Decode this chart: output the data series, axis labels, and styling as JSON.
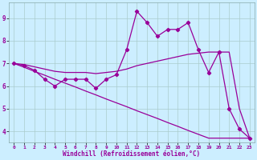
{
  "xlabel": "Windchill (Refroidissement éolien,°C)",
  "background_color": "#cceeff",
  "line_color": "#990099",
  "grid_color": "#aacccc",
  "xlim": [
    -0.5,
    23.5
  ],
  "ylim": [
    3.5,
    9.7
  ],
  "yticks": [
    4,
    5,
    6,
    7,
    8,
    9
  ],
  "xticks": [
    0,
    1,
    2,
    3,
    4,
    5,
    6,
    7,
    8,
    9,
    10,
    11,
    12,
    13,
    14,
    15,
    16,
    17,
    18,
    19,
    20,
    21,
    22,
    23
  ],
  "line1_x": [
    0,
    1,
    2,
    3,
    4,
    5,
    6,
    7,
    8,
    9,
    10,
    11,
    12,
    13,
    14,
    15,
    16,
    17,
    18,
    19,
    20,
    21,
    22,
    23
  ],
  "line1_y": [
    7.0,
    6.9,
    6.7,
    6.3,
    6.0,
    6.3,
    6.3,
    6.3,
    5.9,
    6.3,
    6.5,
    7.6,
    9.3,
    8.8,
    8.2,
    8.5,
    8.5,
    8.8,
    7.6,
    6.6,
    7.5,
    5.0,
    4.1,
    3.7
  ],
  "line2_x": [
    0,
    1,
    2,
    3,
    4,
    5,
    6,
    7,
    8,
    9,
    10,
    11,
    12,
    13,
    14,
    15,
    16,
    17,
    18,
    19,
    20,
    21,
    22,
    23
  ],
  "line2_y": [
    7.0,
    6.95,
    6.85,
    6.75,
    6.65,
    6.6,
    6.6,
    6.6,
    6.55,
    6.6,
    6.65,
    6.75,
    6.9,
    7.0,
    7.1,
    7.2,
    7.3,
    7.4,
    7.45,
    7.5,
    7.5,
    7.5,
    5.0,
    3.7
  ],
  "line3_x": [
    0,
    1,
    2,
    3,
    4,
    5,
    6,
    7,
    8,
    9,
    10,
    11,
    12,
    13,
    14,
    15,
    16,
    17,
    18,
    19,
    20,
    21,
    22,
    23
  ],
  "line3_y": [
    7.0,
    6.83,
    6.65,
    6.48,
    6.3,
    6.13,
    5.96,
    5.78,
    5.61,
    5.43,
    5.26,
    5.09,
    4.91,
    4.74,
    4.57,
    4.39,
    4.22,
    4.04,
    3.87,
    3.7,
    3.7,
    3.7,
    3.7,
    3.7
  ],
  "xlabel_fontsize": 5.5,
  "tick_fontsize_x": 4.5,
  "tick_fontsize_y": 5.5,
  "linewidth": 0.9,
  "markersize": 2.2
}
